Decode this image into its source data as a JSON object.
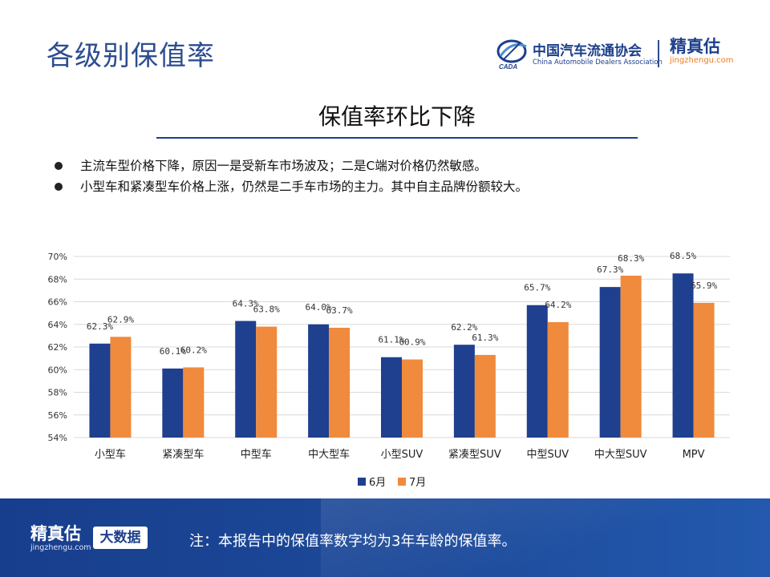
{
  "header": {
    "title": "各级别保值率",
    "cada_name": "中国汽车流通协会",
    "cada_en": "China Automobile Dealers Association",
    "cada_mark": "CADA",
    "jzg_name": "精真估",
    "jzg_url": "jingzhengu.com"
  },
  "subtitle": "保值率环比下降",
  "bullets": [
    "主流车型价格下降，原因一是受新车市场波及；二是C端对价格仍然敏感。",
    "小型车和紧凑型车价格上涨，仍然是二手车市场的主力。其中自主品牌份额较大。"
  ],
  "chart_data": {
    "type": "bar",
    "categories": [
      "小型车",
      "紧凑型车",
      "中型车",
      "中大型车",
      "小型SUV",
      "紧凑型SUV",
      "中型SUV",
      "中大型SUV",
      "MPV"
    ],
    "series": [
      {
        "name": "6月",
        "color": "#1f3f8f",
        "values": [
          62.3,
          60.1,
          64.3,
          64.0,
          61.1,
          62.2,
          65.7,
          67.3,
          68.5
        ],
        "labels": [
          "62.3%",
          "60.1%",
          "64.3%",
          "64.0%",
          "61.1%",
          "62.2%",
          "65.7%",
          "67.3%",
          "68.5%"
        ]
      },
      {
        "name": "7月",
        "color": "#f08a3c",
        "values": [
          62.9,
          60.2,
          63.8,
          63.7,
          60.9,
          61.3,
          64.2,
          68.3,
          65.9
        ],
        "labels": [
          "62.9%",
          "60.2%",
          "63.8%",
          "63.7%",
          "60.9%",
          "61.3%",
          "64.2%",
          "68.3%",
          "65.9%"
        ]
      }
    ],
    "ylim": [
      54,
      70
    ],
    "yticks": [
      54,
      56,
      58,
      60,
      62,
      64,
      66,
      68,
      70
    ],
    "ytick_labels": [
      "54%",
      "56%",
      "58%",
      "60%",
      "62%",
      "64%",
      "66%",
      "68%",
      "70%"
    ],
    "grid": true,
    "legend_position": "bottom"
  },
  "footer": {
    "jzg_name": "精真估",
    "jzg_url": "jingzhengu.com",
    "badge": "大数据",
    "note": "注：本报告中的保值率数字均为3年车龄的保值率。"
  }
}
